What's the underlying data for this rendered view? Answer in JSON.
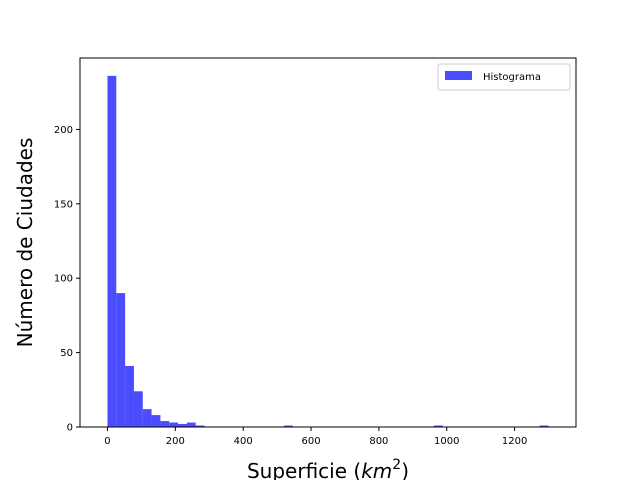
{
  "chart_data": {
    "type": "bar",
    "xlabel": "Superficie (km²)",
    "xlabel_main": "Superficie (",
    "xlabel_unit": "km",
    "xlabel_exp": "2",
    "xlabel_close": ")",
    "ylabel": "Número de Ciudades",
    "xlim": [
      -81,
      1381
    ],
    "ylim": [
      0,
      248
    ],
    "xticks": [
      0,
      200,
      400,
      600,
      800,
      1000,
      1200
    ],
    "yticks": [
      0,
      50,
      100,
      150,
      200
    ],
    "bar_color": "#0000ff",
    "bar_opacity": 0.7,
    "legend": {
      "position": "upper right",
      "label": "Histograma"
    },
    "grid": false,
    "bin_width": 26,
    "series": [
      {
        "name": "Histograma",
        "bins": [
          {
            "x0": 0,
            "x1": 26,
            "count": 236
          },
          {
            "x0": 26,
            "x1": 52,
            "count": 90
          },
          {
            "x0": 52,
            "x1": 78,
            "count": 41
          },
          {
            "x0": 78,
            "x1": 104,
            "count": 24
          },
          {
            "x0": 104,
            "x1": 130,
            "count": 12
          },
          {
            "x0": 130,
            "x1": 156,
            "count": 8
          },
          {
            "x0": 156,
            "x1": 182,
            "count": 4
          },
          {
            "x0": 182,
            "x1": 208,
            "count": 3
          },
          {
            "x0": 208,
            "x1": 234,
            "count": 2
          },
          {
            "x0": 234,
            "x1": 260,
            "count": 3
          },
          {
            "x0": 260,
            "x1": 286,
            "count": 1
          },
          {
            "x0": 520,
            "x1": 546,
            "count": 1
          },
          {
            "x0": 962,
            "x1": 988,
            "count": 1
          },
          {
            "x0": 1274,
            "x1": 1300,
            "count": 1
          }
        ]
      }
    ]
  }
}
